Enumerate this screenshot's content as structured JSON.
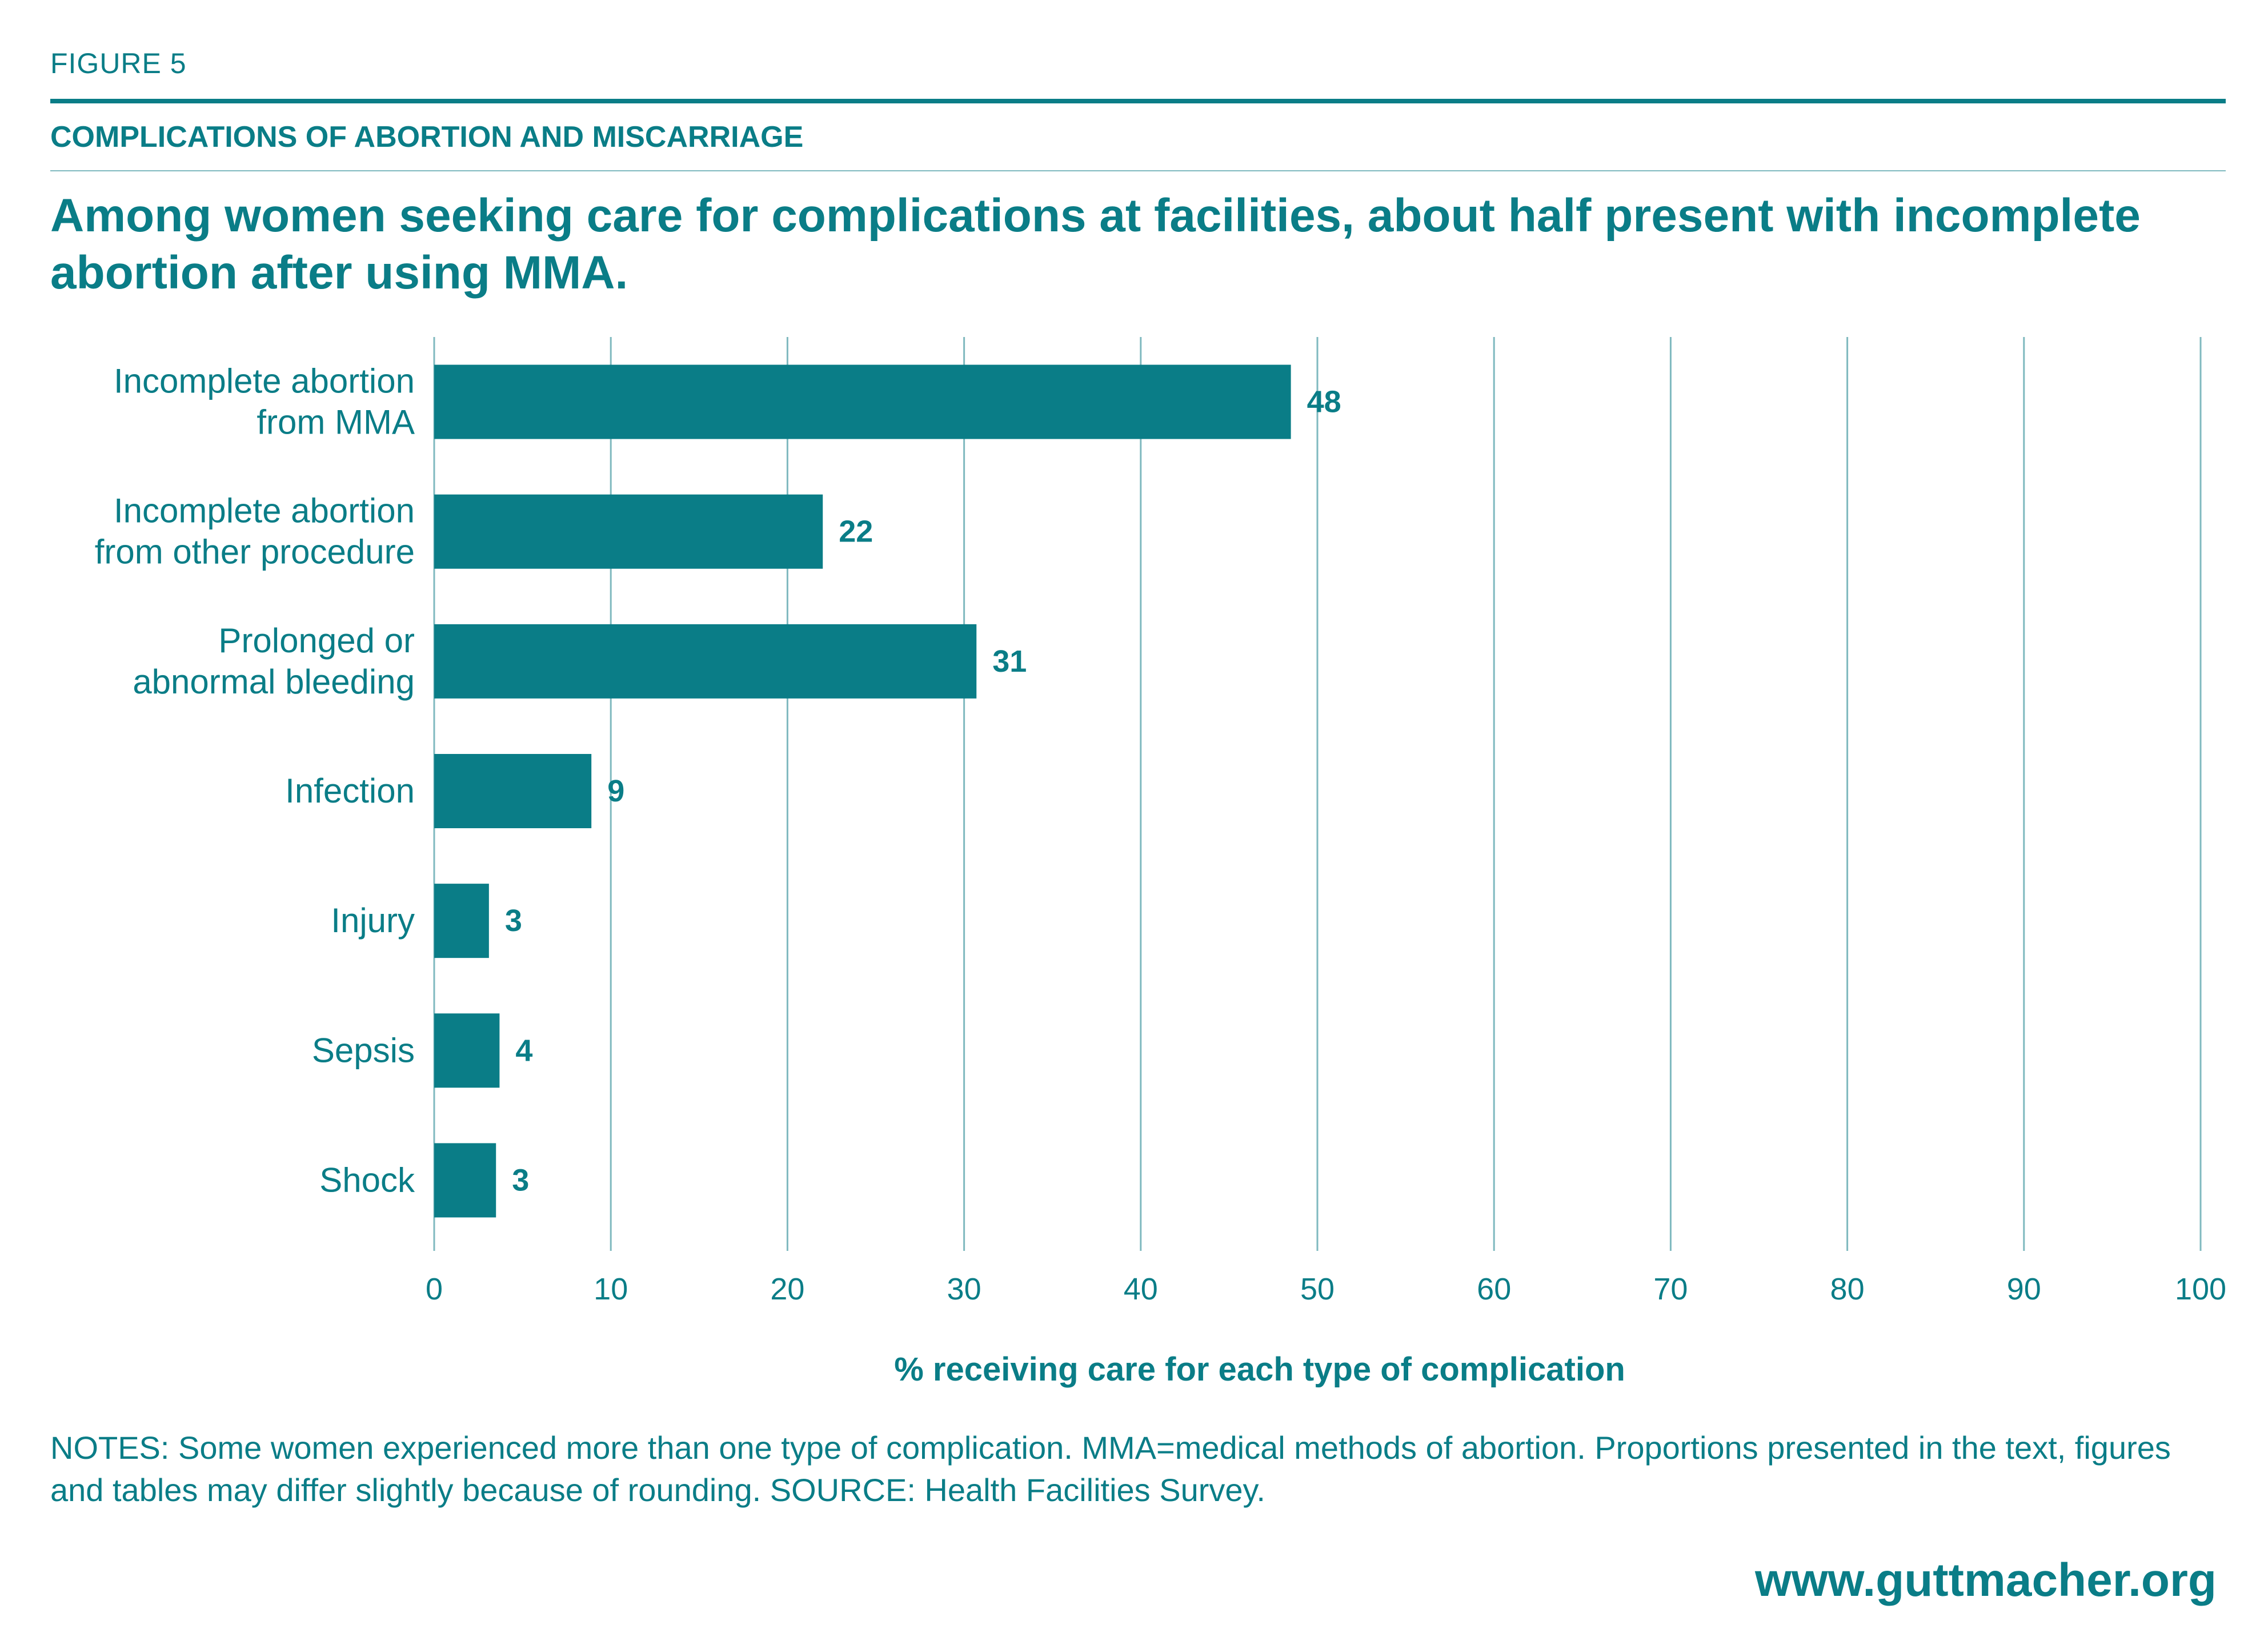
{
  "figure_label": "FIGURE 5",
  "kicker": "COMPLICATIONS OF ABORTION AND MISCARRIAGE",
  "headline": "Among women seeking care for complications at facilities, about half present with incomplete abortion after using MMA.",
  "notes": "NOTES: Some women experienced more than one type of complication. MMA=medical methods of abortion. Proportions presented in the text, figures and tables may differ slightly because of rounding. SOURCE: Health Facilities Survey.",
  "website": "www.guttmacher.org",
  "colors": {
    "accent": "#0a7d87",
    "bar": "#0a7d87",
    "grid": "#7fb9bf"
  },
  "chart_data": {
    "type": "bar",
    "orientation": "horizontal",
    "categories": [
      [
        "Incomplete abortion",
        "from MMA"
      ],
      [
        "Incomplete abortion",
        "from other procedure"
      ],
      [
        "Prolonged or",
        "abnormal bleeding"
      ],
      [
        "Infection"
      ],
      [
        "Injury"
      ],
      [
        "Sepsis"
      ],
      [
        "Shock"
      ]
    ],
    "values": [
      48.5,
      22,
      30.7,
      8.9,
      3.1,
      3.7,
      3.5
    ],
    "value_labels": [
      "48",
      "22",
      "31",
      "9",
      "3",
      "4",
      "3"
    ],
    "xlabel": "% receiving care for each type of complication",
    "xlim": [
      0,
      100
    ],
    "xticks": [
      0,
      10,
      20,
      30,
      40,
      50,
      60,
      70,
      80,
      90,
      100
    ],
    "grid": "vertical",
    "legend": "none"
  }
}
